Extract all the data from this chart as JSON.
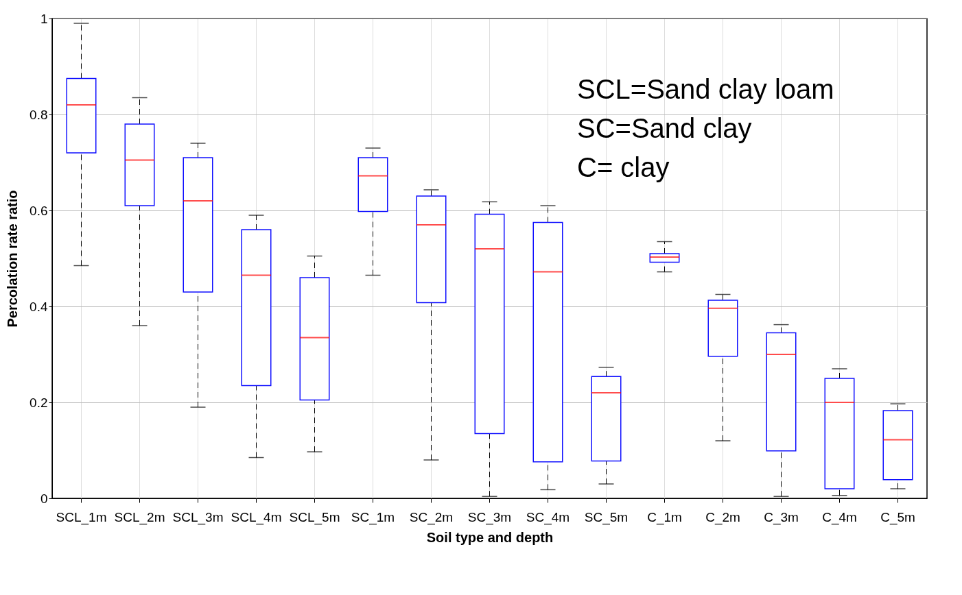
{
  "chart_data": {
    "type": "box",
    "xlabel": "Soil type and depth",
    "ylabel": "Percolation rate ratio",
    "categories": [
      "SCL_1m",
      "SCL_2m",
      "SCL_3m",
      "SCL_4m",
      "SCL_5m",
      "SC_1m",
      "SC_2m",
      "SC_3m",
      "SC_4m",
      "SC_5m",
      "C_1m",
      "C_2m",
      "C_3m",
      "C_4m",
      "C_5m"
    ],
    "boxes": [
      {
        "low": 0.485,
        "q1": 0.72,
        "median": 0.82,
        "q3": 0.875,
        "high": 0.99
      },
      {
        "low": 0.36,
        "q1": 0.61,
        "median": 0.705,
        "q3": 0.78,
        "high": 0.835
      },
      {
        "low": 0.19,
        "q1": 0.43,
        "median": 0.62,
        "q3": 0.71,
        "high": 0.74
      },
      {
        "low": 0.085,
        "q1": 0.235,
        "median": 0.465,
        "q3": 0.56,
        "high": 0.59
      },
      {
        "low": 0.097,
        "q1": 0.205,
        "median": 0.335,
        "q3": 0.46,
        "high": 0.505
      },
      {
        "low": 0.465,
        "q1": 0.598,
        "median": 0.672,
        "q3": 0.71,
        "high": 0.73
      },
      {
        "low": 0.08,
        "q1": 0.408,
        "median": 0.57,
        "q3": 0.63,
        "high": 0.643
      },
      {
        "low": 0.004,
        "q1": 0.135,
        "median": 0.52,
        "q3": 0.592,
        "high": 0.618
      },
      {
        "low": 0.018,
        "q1": 0.076,
        "median": 0.472,
        "q3": 0.575,
        "high": 0.61
      },
      {
        "low": 0.03,
        "q1": 0.078,
        "median": 0.22,
        "q3": 0.254,
        "high": 0.273
      },
      {
        "low": 0.472,
        "q1": 0.492,
        "median": 0.503,
        "q3": 0.51,
        "high": 0.535
      },
      {
        "low": 0.12,
        "q1": 0.296,
        "median": 0.396,
        "q3": 0.413,
        "high": 0.425
      },
      {
        "low": 0.004,
        "q1": 0.099,
        "median": 0.3,
        "q3": 0.345,
        "high": 0.362
      },
      {
        "low": 0.006,
        "q1": 0.02,
        "median": 0.2,
        "q3": 0.25,
        "high": 0.27
      },
      {
        "low": 0.02,
        "q1": 0.039,
        "median": 0.122,
        "q3": 0.183,
        "high": 0.197
      }
    ],
    "ylim": [
      0,
      1
    ],
    "yticks": [
      0,
      0.2,
      0.4,
      0.6,
      0.8,
      1
    ],
    "grid": true,
    "annotations": [
      "SCL=Sand clay loam",
      "SC=Sand clay",
      "C= clay"
    ]
  }
}
